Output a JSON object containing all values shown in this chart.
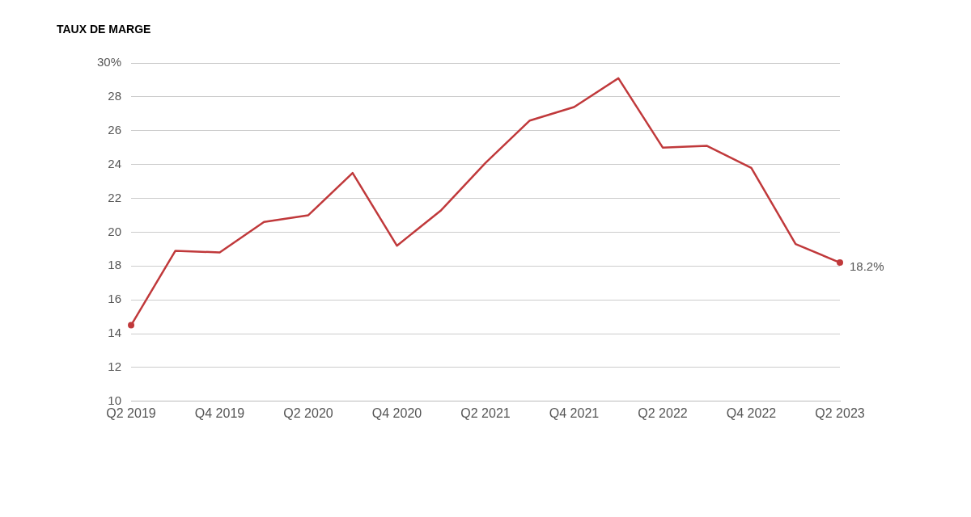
{
  "chart_data": {
    "type": "line",
    "title": "TAUX DE MARGE",
    "categories": [
      "Q2 2019",
      null,
      "Q4 2019",
      null,
      "Q2 2020",
      null,
      "Q4 2020",
      null,
      "Q2 2021",
      null,
      "Q4 2021",
      null,
      "Q2 2022",
      null,
      "Q4 2022",
      null,
      "Q2 2023"
    ],
    "series": [
      {
        "color": "#c0393b",
        "values": [
          14.5,
          18.9,
          18.8,
          20.6,
          21.0,
          23.5,
          19.2,
          21.3,
          24.1,
          26.6,
          27.4,
          29.1,
          25.0,
          25.1,
          23.8,
          19.3,
          18.2
        ]
      }
    ],
    "ylim": [
      10,
      30
    ],
    "yticks": [
      10,
      12,
      14,
      16,
      18,
      20,
      22,
      24,
      26,
      28,
      {
        "value": 30,
        "label": "30%"
      }
    ],
    "grid": "y",
    "legend": false,
    "line_style": "solid",
    "annotations": [
      {
        "text": "18.2%",
        "x": "Q2 2023",
        "y": 18.2
      }
    ]
  }
}
